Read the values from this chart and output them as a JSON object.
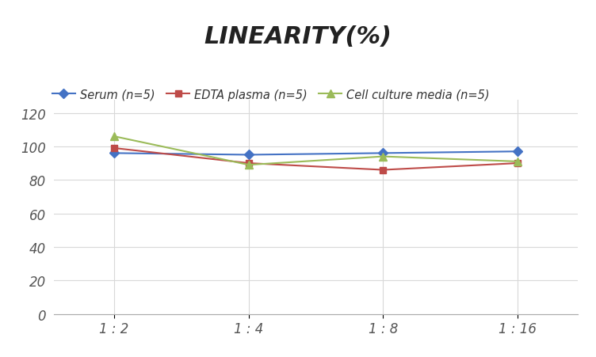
{
  "title": "LINEARITY(%)",
  "title_fontsize": 22,
  "title_fontstyle": "italic",
  "title_fontweight": "bold",
  "x_labels": [
    "1 : 2",
    "1 : 4",
    "1 : 8",
    "1 : 16"
  ],
  "x_positions": [
    0,
    1,
    2,
    3
  ],
  "serum": [
    96,
    95,
    96,
    97
  ],
  "edta": [
    99,
    90,
    86,
    90
  ],
  "cell": [
    106,
    89,
    94,
    91
  ],
  "serum_color": "#4472C4",
  "edta_color": "#BE4B48",
  "cell_color": "#9BBB59",
  "serum_label": "Serum (n=5)",
  "edta_label": "EDTA plasma (n=5)",
  "cell_label": "Cell culture media (n=5)",
  "ylim": [
    0,
    128
  ],
  "yticks": [
    0,
    20,
    40,
    60,
    80,
    100,
    120
  ],
  "background_color": "#FFFFFF",
  "grid_color": "#D8D8D8",
  "legend_fontsize": 10.5,
  "axis_tick_fontsize": 12
}
